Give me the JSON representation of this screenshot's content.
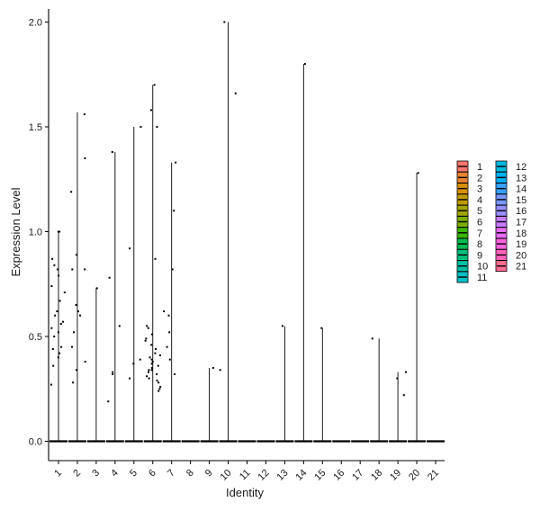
{
  "chart_data": {
    "type": "violin",
    "title": "",
    "xlabel": "Identity",
    "ylabel": "Expression Level",
    "ylim": [
      -0.1,
      2.05
    ],
    "yticks": [
      "0.0",
      "0.5",
      "1.0",
      "1.5",
      "2.0"
    ],
    "ytick_values": [
      0,
      0.5,
      1.0,
      1.5,
      2.0
    ],
    "categories": [
      "1",
      "2",
      "3",
      "4",
      "5",
      "6",
      "7",
      "8",
      "9",
      "10",
      "11",
      "12",
      "13",
      "14",
      "15",
      "16",
      "17",
      "18",
      "19",
      "20",
      "21"
    ],
    "grid": false,
    "legend_position": "right",
    "legend_columns": [
      [
        "1",
        "2",
        "3",
        "4",
        "5",
        "6",
        "7",
        "8",
        "9",
        "10",
        "11"
      ],
      [
        "12",
        "13",
        "14",
        "15",
        "16",
        "17",
        "18",
        "19",
        "20",
        "21"
      ]
    ],
    "series": [
      {
        "name": "1",
        "color": "#F8766D",
        "max": 1.0,
        "points": [
          1.0,
          1.0,
          0.87,
          0.84,
          0.82,
          0.79,
          0.74,
          0.71,
          0.67,
          0.62,
          0.6,
          0.57,
          0.56,
          0.54,
          0.52,
          0.5,
          0.45,
          0.44,
          0.42,
          0.4,
          0.36,
          0.27
        ]
      },
      {
        "name": "2",
        "color": "#EA8331",
        "max": 1.57,
        "points": [
          1.56,
          1.35,
          1.19,
          0.89,
          0.82,
          0.82,
          0.65,
          0.62,
          0.6,
          0.52,
          0.45,
          0.38,
          0.34,
          0.28
        ]
      },
      {
        "name": "3",
        "color": "#D89000",
        "max": 0.73,
        "points": [
          0.73
        ]
      },
      {
        "name": "4",
        "color": "#C09B00",
        "max": 1.38,
        "points": [
          1.38,
          0.78,
          0.55,
          0.33,
          0.32,
          0.19
        ]
      },
      {
        "name": "5",
        "color": "#A3A500",
        "max": 1.5,
        "points": [
          1.5,
          0.92,
          0.39,
          0.37,
          0.3
        ]
      },
      {
        "name": "6",
        "color": "#7CAE00",
        "max": 1.7,
        "points": [
          1.7,
          1.58,
          1.5,
          0.87,
          0.55,
          0.54,
          0.51,
          0.49,
          0.48,
          0.46,
          0.44,
          0.42,
          0.41,
          0.4,
          0.39,
          0.38,
          0.37,
          0.36,
          0.35,
          0.34,
          0.34,
          0.33,
          0.32,
          0.31,
          0.3,
          0.29,
          0.28,
          0.26,
          0.25,
          0.24
        ]
      },
      {
        "name": "7",
        "color": "#39B600",
        "max": 1.33,
        "points": [
          1.33,
          1.1,
          0.82,
          0.62,
          0.6,
          0.52,
          0.45,
          0.39,
          0.32
        ]
      },
      {
        "name": "8",
        "color": "#00BB4E",
        "max": 0.0,
        "points": []
      },
      {
        "name": "9",
        "color": "#00BF7D",
        "max": 0.35,
        "points": [
          0.35
        ]
      },
      {
        "name": "10",
        "color": "#00C1A3",
        "max": 2.0,
        "points": [
          2.0,
          1.66,
          0.34
        ]
      },
      {
        "name": "11",
        "color": "#00BFC4",
        "max": 0.0,
        "points": []
      },
      {
        "name": "12",
        "color": "#00BAE0",
        "max": 0.0,
        "points": []
      },
      {
        "name": "13",
        "color": "#00B0F6",
        "max": 0.55,
        "points": [
          0.55
        ]
      },
      {
        "name": "14",
        "color": "#35A2FF",
        "max": 1.8,
        "points": [
          1.8
        ]
      },
      {
        "name": "15",
        "color": "#7997FF",
        "max": 0.54,
        "points": [
          0.54
        ]
      },
      {
        "name": "16",
        "color": "#9590FF",
        "max": 0.0,
        "points": []
      },
      {
        "name": "17",
        "color": "#C77CFF",
        "max": 0.0,
        "points": []
      },
      {
        "name": "18",
        "color": "#E76BF3",
        "max": 0.49,
        "points": [
          0.49
        ]
      },
      {
        "name": "19",
        "color": "#FA62DB",
        "max": 0.33,
        "points": [
          0.33,
          0.3,
          0.22
        ]
      },
      {
        "name": "20",
        "color": "#FF62BC",
        "max": 1.28,
        "points": [
          1.28
        ]
      },
      {
        "name": "21",
        "color": "#FF6C91",
        "max": 0.0,
        "points": []
      }
    ]
  }
}
